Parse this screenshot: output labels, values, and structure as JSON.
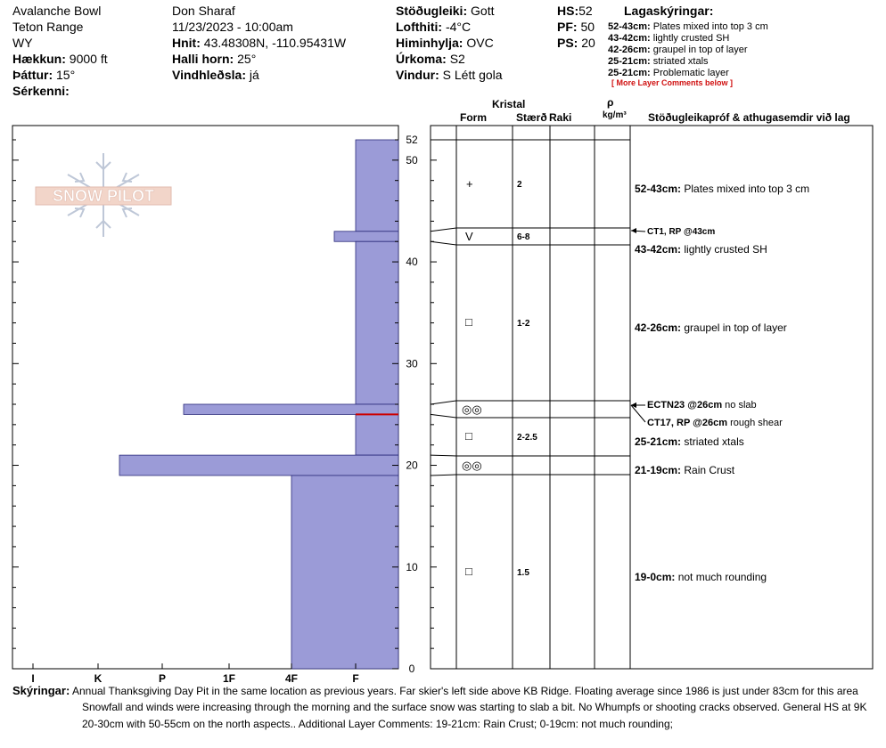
{
  "header": {
    "location": "Avalanche Bowl",
    "range": "Teton Range",
    "state": "WY",
    "elevation_label": "Hækkun:",
    "elevation_value": "9000 ft",
    "aspect_label": "Þáttur:",
    "aspect_value": "15°",
    "features_label": "Sérkenni:",
    "observer": "Don Sharaf",
    "datetime": "11/23/2023 - 10:00am",
    "coords_label": "Hnit:",
    "coords_value": "43.48308N, -110.95431W",
    "slope_label": "Halli horn:",
    "slope_value": "25°",
    "wind_loading_label": "Vindhleðsla:",
    "wind_loading_value": "já",
    "stability_label": "Stöðugleiki:",
    "stability_value": "Gott",
    "air_temp_label": "Lofthiti:",
    "air_temp_value": "-4°C",
    "sky_label": "Himinhylja:",
    "sky_value": "OVC",
    "precip_label": "Úrkoma:",
    "precip_value": "S2",
    "wind_label": "Vindur:",
    "wind_value": "S Létt gola",
    "hs_label": "HS:",
    "hs_value": "52",
    "pf_label": "PF:",
    "pf_value": "50",
    "ps_label": "PS:",
    "ps_value": "20"
  },
  "legend": {
    "title": "Lagaskýringar:",
    "items": [
      {
        "range": "52-43cm:",
        "text": "Plates mixed into top 3 cm"
      },
      {
        "range": "43-42cm:",
        "text": "lightly crusted SH"
      },
      {
        "range": "42-26cm:",
        "text": "graupel in top of layer"
      },
      {
        "range": "25-21cm:",
        "text": "striated xtals"
      },
      {
        "range": "25-21cm:",
        "text": "Problematic layer"
      }
    ],
    "more": "[ More Layer Comments below ]"
  },
  "logo": {
    "text": "SNOW PILOT"
  },
  "columns": {
    "crystal": "Kristal",
    "form": "Form",
    "size": "Stærð",
    "moisture": "Raki",
    "rho": "ρ",
    "density_unit": "kg/m³",
    "stability_tests": "Stöðugleikapróf & athugasemdir við lag"
  },
  "chart_data": {
    "type": "bar",
    "orientation": "horizontal",
    "description_of_axes": "x = hand hardness, y = snow height (cm)",
    "x_categories": [
      "I",
      "K",
      "P",
      "1F",
      "4F",
      "F"
    ],
    "x_order_note": "hardness increases right-to-left from F",
    "y_ticks": [
      0,
      10,
      20,
      30,
      40,
      50,
      52
    ],
    "ylim": [
      0,
      52
    ],
    "layers": [
      {
        "top": 52,
        "bottom": 43,
        "hardness": "F"
      },
      {
        "top": 43,
        "bottom": 42,
        "hardness": "F+"
      },
      {
        "top": 42,
        "bottom": 26,
        "hardness": "F"
      },
      {
        "top": 26,
        "bottom": 25,
        "hardness": "P-"
      },
      {
        "top": 25,
        "bottom": 21,
        "hardness": "F"
      },
      {
        "top": 21,
        "bottom": 19,
        "hardness": "K-"
      },
      {
        "top": 19,
        "bottom": 0,
        "hardness": "4F"
      }
    ],
    "critical_layer": 25,
    "bar_color": "#9b9bd7",
    "critical_color": "#cc0000"
  },
  "crystal_rows": [
    {
      "symbol": "+",
      "size": "2"
    },
    {
      "symbol": "V",
      "size": "6-8"
    },
    {
      "symbol": "□",
      "size": "1-2"
    },
    {
      "symbol": "◎◎",
      "size": ""
    },
    {
      "symbol": "□",
      "size": "2-2.5"
    },
    {
      "symbol": "◎◎",
      "size": ""
    },
    {
      "symbol": "□",
      "size": "1.5"
    }
  ],
  "layer_comments": [
    {
      "range": "52-43cm:",
      "text": "Plates mixed into top 3 cm"
    },
    {
      "range": "43-42cm:",
      "text": "lightly crusted SH"
    },
    {
      "range": "42-26cm:",
      "text": "graupel in top of layer"
    },
    {
      "range": "25-21cm:",
      "text": "striated xtals"
    },
    {
      "range": "21-19cm:",
      "text": "Rain Crust"
    },
    {
      "range": "19-0cm:",
      "text": "not much rounding"
    }
  ],
  "tests": [
    {
      "label": "CT1, RP @43cm",
      "note": ""
    },
    {
      "label": "ECTN23 @26cm",
      "note": "no slab"
    },
    {
      "label": "CT17, RP @26cm",
      "note": "rough shear"
    }
  ],
  "footer": {
    "label": "Skýringar:",
    "line1": "Annual Thanksgiving Day Pit in the same location as previous years.  Far skier's left side above KB Ridge.  Floating average since 1986 is just under 83cm for this area",
    "line2": "Snowfall and winds were increasing through the morning and the surface snow was starting to slab a bit.  No Whumpfs or shooting cracks observed.  General HS at 9K",
    "line3": "20-30cm with 50-55cm on the north aspects.. Additional Layer Comments: 19-21cm: Rain Crust; 0-19cm: not much rounding;"
  }
}
